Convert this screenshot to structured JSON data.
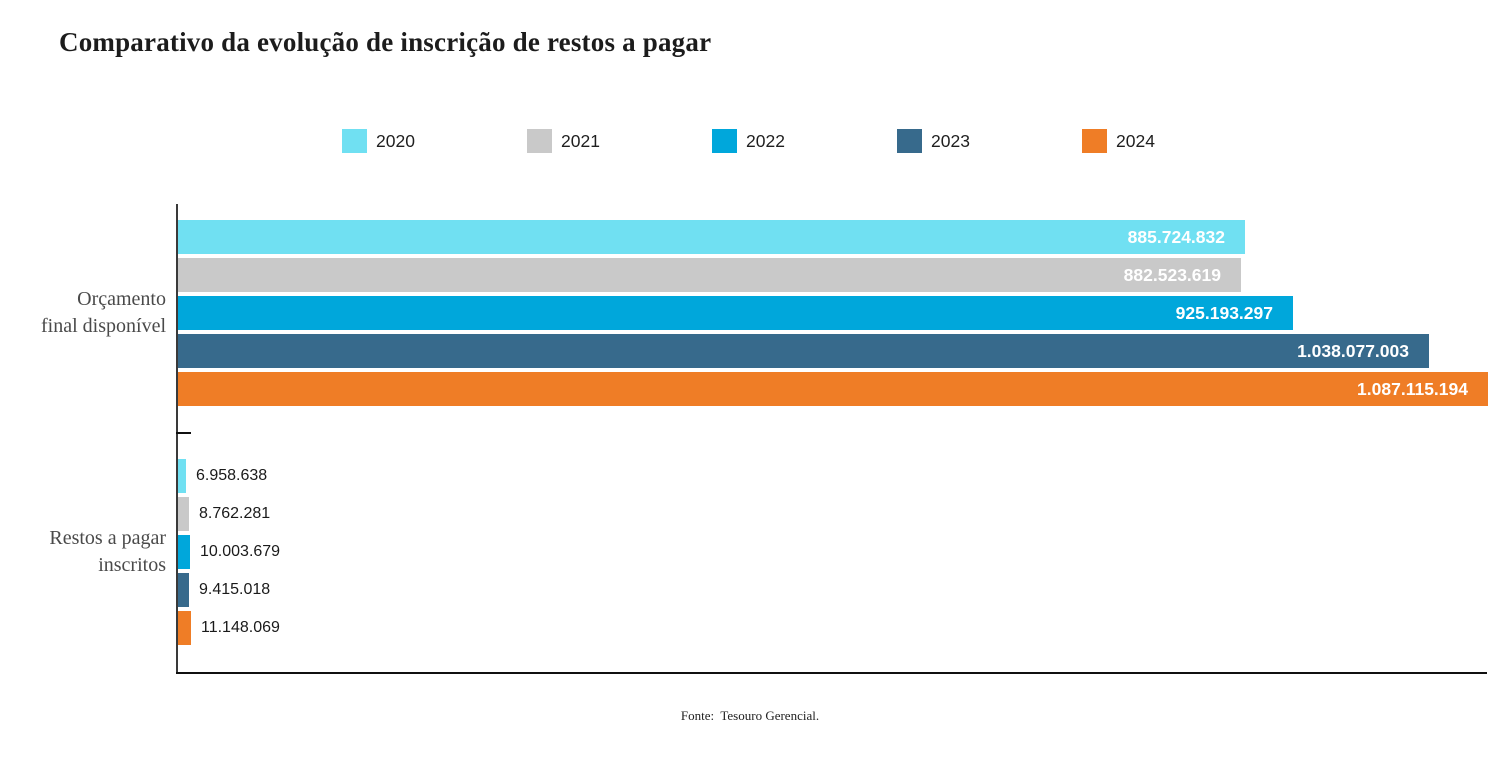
{
  "title": "Comparativo da evolução de inscrição de restos a pagar",
  "source_note": "Fonte:  Tesouro Gerencial.",
  "colors": {
    "axis": "#3a3a3a",
    "baseline": "#101010",
    "bar_label_inside": "#ffffff",
    "bar_label_outside": "#1a1a1a"
  },
  "legend": {
    "position": "top",
    "items": [
      {
        "label": "2020",
        "color": "#70E0F2"
      },
      {
        "label": "2021",
        "color": "#C9C9C9"
      },
      {
        "label": "2022",
        "color": "#00A7DB"
      },
      {
        "label": "2023",
        "color": "#376A8C"
      },
      {
        "label": "2024",
        "color": "#EF7D26"
      }
    ]
  },
  "chart_data": {
    "type": "bar",
    "orientation": "horizontal",
    "title": "Comparativo da evolução de inscrição de restos a pagar",
    "categories": [
      "Orçamento final disponível",
      "Restos a pagar inscritos"
    ],
    "category_lines": [
      [
        "Orçamento",
        "final disponível"
      ],
      [
        "Restos a pagar",
        "inscritos"
      ]
    ],
    "xlim": [
      0,
      1087115194
    ],
    "grid": false,
    "legend_position": "top",
    "series": [
      {
        "name": "2020",
        "color": "#70E0F2",
        "values": [
          885724832,
          6958638
        ],
        "value_labels": [
          "885.724.832",
          "6.958.638"
        ]
      },
      {
        "name": "2021",
        "color": "#C9C9C9",
        "values": [
          882523619,
          8762281
        ],
        "value_labels": [
          "882.523.619",
          "8.762.281"
        ]
      },
      {
        "name": "2022",
        "color": "#00A7DB",
        "values": [
          925193297,
          10003679
        ],
        "value_labels": [
          "925.193.297",
          "10.003.679"
        ]
      },
      {
        "name": "2023",
        "color": "#376A8C",
        "values": [
          1038077003,
          9415018
        ],
        "value_labels": [
          "1.038.077.003",
          "9.415.018"
        ]
      },
      {
        "name": "2024",
        "color": "#EF7D26",
        "values": [
          1087115194,
          11148069
        ],
        "value_labels": [
          "1.087.115.194",
          "11.148.069"
        ]
      }
    ]
  }
}
